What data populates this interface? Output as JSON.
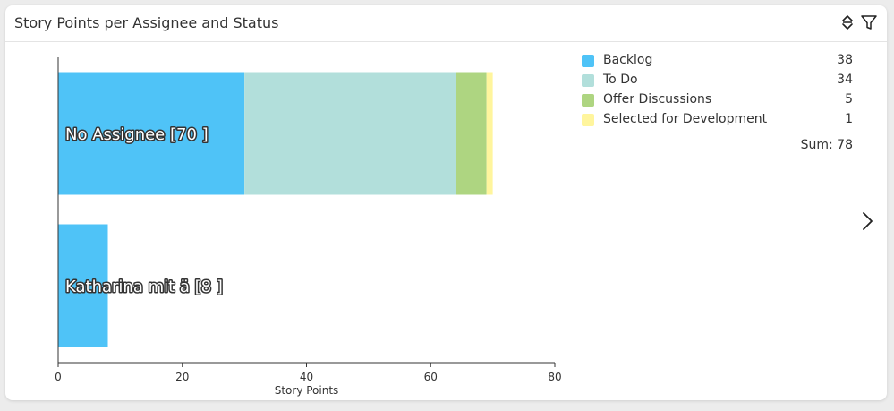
{
  "header": {
    "title": "Story Points per Assignee and Status",
    "sort_icon": "sort-updown-icon",
    "filter_icon": "filter-icon"
  },
  "nav": {
    "next_icon": "chevron-right-icon"
  },
  "chart_data": {
    "type": "bar",
    "orientation": "horizontal",
    "stacked": true,
    "categories": [
      "No Assignee [70 ]",
      "Katharina mit ä [8 ]"
    ],
    "series": [
      {
        "name": "Backlog",
        "color": "#4fc3f7",
        "values": [
          30,
          8
        ]
      },
      {
        "name": "To Do",
        "color": "#b2dfdb",
        "values": [
          34,
          0
        ]
      },
      {
        "name": "Offer Discussions",
        "color": "#aed581",
        "values": [
          5,
          0
        ]
      },
      {
        "name": "Selected for Development",
        "color": "#fff59d",
        "values": [
          1,
          0
        ]
      }
    ],
    "xlabel": "Story Points",
    "xlim": [
      0,
      80
    ],
    "xticks": [
      0,
      20,
      40,
      60,
      80
    ],
    "grid": false,
    "legend_position": "right"
  },
  "legend": {
    "items": [
      {
        "label": "Backlog",
        "value": "38",
        "color": "#4fc3f7"
      },
      {
        "label": "To Do",
        "value": "34",
        "color": "#b2dfdb"
      },
      {
        "label": "Offer Discussions",
        "value": "5",
        "color": "#aed581"
      },
      {
        "label": "Selected for Development",
        "value": "1",
        "color": "#fff59d"
      }
    ],
    "sum": "Sum: 78"
  }
}
